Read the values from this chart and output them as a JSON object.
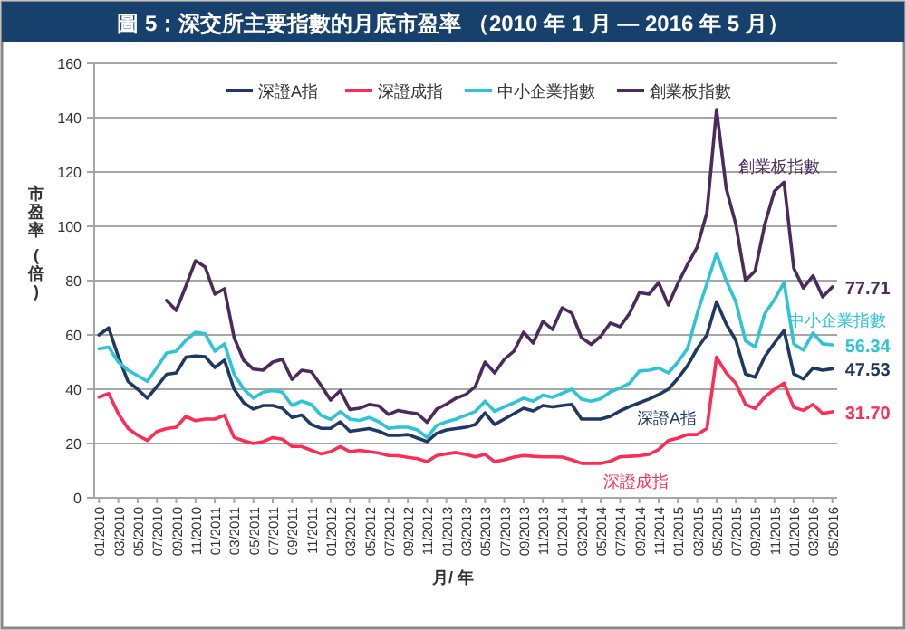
{
  "chart_data": {
    "type": "line",
    "title": "圖 5：深交所主要指數的月底市盈率 （2010 年 1 月 — 2016 年 5 月）",
    "xlabel": "月/ 年",
    "ylabel": "市盈率 (倍)",
    "categories": [
      "01/2010",
      null,
      "03/2010",
      null,
      "05/2010",
      null,
      "07/2010",
      null,
      "09/2010",
      null,
      "11/2010",
      null,
      "01/2011",
      null,
      "03/2011",
      null,
      "05/2011",
      null,
      "07/2011",
      null,
      "09/2011",
      null,
      "11/2011",
      null,
      "01/2012",
      null,
      "03/2012",
      null,
      "05/2012",
      null,
      "07/2012",
      null,
      "09/2012",
      null,
      "11/2012",
      null,
      "01/2013",
      null,
      "03/2013",
      null,
      "05/2013",
      null,
      "07/2013",
      null,
      "09/2013",
      null,
      "11/2013",
      null,
      "01/2014",
      null,
      "03/2014",
      null,
      "05/2014",
      null,
      "07/2014",
      null,
      "09/2014",
      null,
      "11/2014",
      null,
      "01/2015",
      null,
      "03/2015",
      null,
      "05/2015",
      null,
      "07/2015",
      null,
      "09/2015",
      null,
      "11/2015",
      null,
      "01/2016",
      null,
      "03/2016",
      null,
      "05/2016"
    ],
    "series": [
      {
        "name": "深證A指",
        "color": "#1f3864",
        "values": [
          60,
          62.6,
          52,
          42.9,
          40,
          36.7,
          41,
          45.5,
          46,
          51.8,
          52.2,
          52,
          48,
          50.7,
          40,
          35,
          32.7,
          34,
          34,
          33,
          29.6,
          30.5,
          27,
          25.6,
          25.6,
          28,
          24.5,
          25,
          25.5,
          24.5,
          23,
          23,
          23.3,
          22,
          20.7,
          23.8,
          25,
          25.5,
          26,
          27,
          31.3,
          27,
          29,
          31,
          33,
          32,
          34,
          33.5,
          34,
          34.4,
          29,
          29,
          29,
          30,
          32,
          33.6,
          35,
          36.4,
          38,
          40,
          44,
          48.7,
          55,
          60,
          72.2,
          64,
          58,
          45.6,
          44.4,
          52,
          57,
          61.6,
          45.6,
          43.8,
          47.8,
          47,
          47.53
        ],
        "value_labels": [
          null,
          null,
          null,
          null,
          null,
          null,
          null,
          null,
          null,
          null,
          null,
          null,
          null,
          null,
          null,
          null,
          null,
          null,
          null,
          null,
          null,
          null,
          null,
          null,
          null,
          null,
          null,
          null,
          null,
          null,
          null,
          null,
          null,
          null,
          null,
          null,
          null,
          null,
          null,
          null,
          null,
          null,
          null,
          null,
          null,
          null,
          null,
          null,
          null,
          null,
          null,
          null,
          null,
          null,
          null,
          null,
          null,
          null,
          null,
          null,
          null,
          null,
          null,
          null,
          null,
          null,
          null,
          null,
          null,
          null,
          null,
          null,
          null,
          null,
          null,
          null,
          "47.53"
        ]
      },
      {
        "name": "深證成指",
        "color": "#ff2d55",
        "values": [
          37.1,
          38.4,
          31,
          25.6,
          23,
          21.1,
          24.4,
          25.5,
          26,
          30,
          28.4,
          29,
          29,
          30.4,
          22.2,
          21,
          20,
          20.7,
          22.2,
          21.6,
          18.9,
          18.9,
          17.5,
          16.2,
          17,
          18.9,
          17,
          17.5,
          17,
          16.5,
          15.6,
          15.5,
          14.9,
          14.4,
          13.3,
          15.6,
          16.2,
          16.7,
          16,
          15.1,
          16,
          13.3,
          14,
          15,
          15.6,
          15.3,
          15.1,
          15.1,
          15,
          14,
          12.7,
          12.7,
          12.7,
          13.5,
          15.1,
          15.3,
          15.5,
          16,
          17.8,
          21.1,
          22,
          23.3,
          23.3,
          25.6,
          51.8,
          46,
          42.2,
          34.4,
          32.9,
          37.1,
          40,
          42.2,
          33.3,
          32.2,
          34.4,
          31.1,
          31.7
        ],
        "value_labels": [
          null,
          null,
          null,
          null,
          null,
          null,
          null,
          null,
          null,
          null,
          null,
          null,
          null,
          null,
          null,
          null,
          null,
          null,
          null,
          null,
          null,
          null,
          null,
          null,
          null,
          null,
          null,
          null,
          null,
          null,
          null,
          null,
          null,
          null,
          null,
          null,
          null,
          null,
          null,
          null,
          null,
          null,
          null,
          null,
          null,
          null,
          null,
          null,
          null,
          null,
          null,
          null,
          null,
          null,
          null,
          null,
          null,
          null,
          null,
          null,
          null,
          null,
          null,
          null,
          null,
          null,
          null,
          null,
          null,
          null,
          null,
          null,
          null,
          null,
          null,
          null,
          "31.70"
        ]
      },
      {
        "name": "中小企業指數",
        "color": "#2ec4d6",
        "values": [
          54.9,
          55.5,
          50,
          47,
          45,
          42.9,
          48,
          53.3,
          54,
          58,
          61,
          60.4,
          54,
          56.7,
          45.5,
          40,
          36.7,
          38.9,
          39.5,
          38.9,
          34,
          35.6,
          34.4,
          30.4,
          28.9,
          31.8,
          29,
          28.5,
          29.6,
          28,
          25.6,
          26,
          26,
          25,
          22.2,
          26.7,
          28,
          29,
          30.4,
          31.8,
          35.6,
          31.8,
          33.5,
          35,
          36.7,
          35.6,
          37.8,
          37,
          38.5,
          40,
          36.3,
          35.6,
          36.5,
          39,
          40.5,
          42.2,
          46.7,
          47,
          47.8,
          46,
          50,
          55,
          68,
          78.9,
          90,
          80,
          72.2,
          57.8,
          55.6,
          67.8,
          73,
          79.3,
          56.7,
          54.4,
          60.7,
          56.7,
          56.34
        ],
        "value_labels": [
          null,
          null,
          null,
          null,
          null,
          null,
          null,
          null,
          null,
          null,
          null,
          null,
          null,
          null,
          null,
          null,
          null,
          null,
          null,
          null,
          null,
          null,
          null,
          null,
          null,
          null,
          null,
          null,
          null,
          null,
          null,
          null,
          null,
          null,
          null,
          null,
          null,
          null,
          null,
          null,
          null,
          null,
          null,
          null,
          null,
          null,
          null,
          null,
          null,
          null,
          null,
          null,
          null,
          null,
          null,
          null,
          null,
          null,
          null,
          null,
          null,
          null,
          null,
          null,
          null,
          null,
          null,
          null,
          null,
          null,
          null,
          null,
          null,
          null,
          null,
          null,
          "56.34"
        ]
      },
      {
        "name": "創業板指數",
        "color": "#4b2a5e",
        "values": [
          null,
          null,
          null,
          null,
          null,
          null,
          null,
          72.7,
          69,
          78,
          87.3,
          85,
          75,
          77,
          59,
          50.6,
          47.4,
          47,
          50,
          51,
          43.6,
          47,
          46.4,
          41.5,
          36,
          39.5,
          32.5,
          33,
          34.4,
          33.8,
          30.7,
          32.2,
          31.5,
          31,
          27.8,
          32.7,
          34.5,
          36.7,
          38,
          41,
          50,
          46,
          51,
          54,
          61,
          57,
          65,
          62,
          70,
          68,
          59,
          56.5,
          59.5,
          64.4,
          63,
          68,
          75.6,
          75,
          79.3,
          71,
          79,
          86,
          92.4,
          105,
          143,
          114,
          100.7,
          80,
          83.6,
          100.7,
          112.9,
          116.2,
          84.6,
          77.3,
          81.8,
          74,
          77.71
        ],
        "value_labels": [
          null,
          null,
          null,
          null,
          null,
          null,
          null,
          null,
          null,
          null,
          null,
          null,
          null,
          null,
          null,
          null,
          null,
          null,
          null,
          null,
          null,
          null,
          null,
          null,
          null,
          null,
          null,
          null,
          null,
          null,
          null,
          null,
          null,
          null,
          null,
          null,
          null,
          null,
          null,
          null,
          null,
          null,
          null,
          null,
          null,
          null,
          null,
          null,
          null,
          null,
          null,
          null,
          null,
          null,
          null,
          null,
          null,
          null,
          null,
          null,
          null,
          null,
          null,
          null,
          null,
          null,
          null,
          null,
          null,
          null,
          null,
          null,
          null,
          null,
          null,
          null,
          "77.71"
        ]
      }
    ],
    "annotations": [
      "創業板指數",
      "中小企業指數",
      "深證A指",
      "深證成指"
    ],
    "ylim": [
      0,
      160
    ],
    "yticks": [
      0,
      20,
      40,
      60,
      80,
      100,
      120,
      140,
      160
    ],
    "grid": "y",
    "legend": "top",
    "marker": "none",
    "line_style": "solid"
  }
}
